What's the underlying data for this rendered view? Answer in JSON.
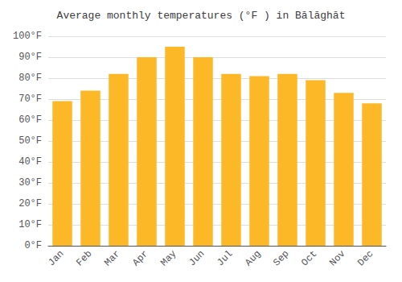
{
  "chart_data": {
    "type": "bar",
    "title": "Average monthly temperatures (°F ) in Bālāghāt",
    "categories": [
      "Jan",
      "Feb",
      "Mar",
      "Apr",
      "May",
      "Jun",
      "Jul",
      "Aug",
      "Sep",
      "Oct",
      "Nov",
      "Dec"
    ],
    "values": [
      69,
      74,
      82,
      90,
      95,
      90,
      82,
      81,
      82,
      79,
      73,
      68
    ],
    "color": "#FDB827",
    "ylim": [
      0,
      100
    ],
    "yticks": [
      {
        "value": 0,
        "label": "0°F"
      },
      {
        "value": 10,
        "label": "10°F"
      },
      {
        "value": 20,
        "label": "20°F"
      },
      {
        "value": 30,
        "label": "30°F"
      },
      {
        "value": 40,
        "label": "40°F"
      },
      {
        "value": 50,
        "label": "50°F"
      },
      {
        "value": 60,
        "label": "60°F"
      },
      {
        "value": 70,
        "label": "70°F"
      },
      {
        "value": 80,
        "label": "80°F"
      },
      {
        "value": 90,
        "label": "90°F"
      },
      {
        "value": 100,
        "label": "100°F"
      }
    ],
    "grid": true
  }
}
